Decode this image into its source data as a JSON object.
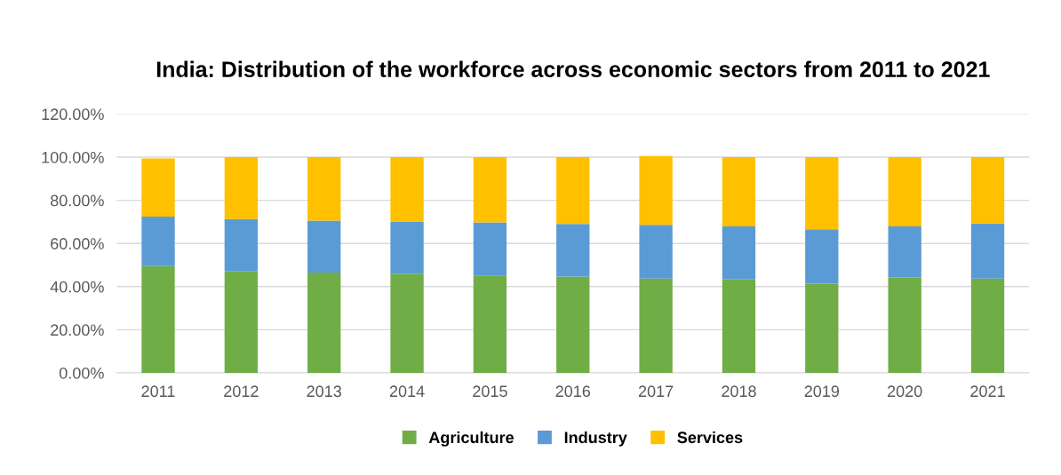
{
  "chart_data": {
    "type": "bar",
    "stacked": true,
    "title": "India: Distribution of the workforce across economic sectors from 2011 to 2021",
    "categories": [
      "2011",
      "2012",
      "2013",
      "2014",
      "2015",
      "2016",
      "2017",
      "2018",
      "2019",
      "2020",
      "2021"
    ],
    "series": [
      {
        "name": "Agriculture",
        "color": "#70ad47",
        "values": [
          49.5,
          47.0,
          46.5,
          46.0,
          45.2,
          44.6,
          43.7,
          43.3,
          41.3,
          44.2,
          43.7
        ]
      },
      {
        "name": "Industry",
        "color": "#5b9bd5",
        "values": [
          22.9,
          24.3,
          24.1,
          24.2,
          24.6,
          24.4,
          24.9,
          24.6,
          25.3,
          23.7,
          25.6
        ]
      },
      {
        "name": "Services",
        "color": "#ffc000",
        "values": [
          27.0,
          28.7,
          29.4,
          29.8,
          30.2,
          31.0,
          31.9,
          32.1,
          33.4,
          32.1,
          30.7
        ]
      }
    ],
    "ylim": [
      0,
      120
    ],
    "yticks": [
      {
        "value": 0,
        "label": "0.00%"
      },
      {
        "value": 20,
        "label": "20.00%"
      },
      {
        "value": 40,
        "label": "40.00%"
      },
      {
        "value": 60,
        "label": "60.00%"
      },
      {
        "value": 80,
        "label": "80.00%"
      },
      {
        "value": 100,
        "label": "100.00%"
      },
      {
        "value": 120,
        "label": "120.00%"
      }
    ],
    "grid": "y",
    "legend": "bottom"
  }
}
